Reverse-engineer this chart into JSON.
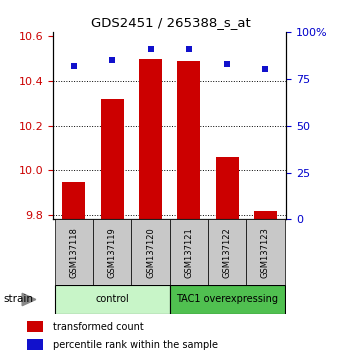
{
  "title": "GDS2451 / 265388_s_at",
  "samples": [
    "GSM137118",
    "GSM137119",
    "GSM137120",
    "GSM137121",
    "GSM137122",
    "GSM137123"
  ],
  "transformed_count": [
    9.95,
    10.32,
    10.5,
    10.49,
    10.06,
    9.82
  ],
  "percentile": [
    82,
    85,
    91,
    91,
    83,
    80
  ],
  "ylim_left": [
    9.78,
    10.62
  ],
  "ylim_right": [
    0,
    100
  ],
  "yticks_left": [
    9.8,
    10.0,
    10.2,
    10.4,
    10.6
  ],
  "yticks_right": [
    0,
    25,
    50,
    75,
    100
  ],
  "groups": [
    {
      "label": "control",
      "indices": [
        0,
        1,
        2
      ],
      "color": "#c8f5c8"
    },
    {
      "label": "TAC1 overexpressing",
      "indices": [
        3,
        4,
        5
      ],
      "color": "#50c050"
    }
  ],
  "bar_color": "#cc0000",
  "dot_color": "#1111cc",
  "bar_baseline": 9.78,
  "legend_red_label": "transformed count",
  "legend_blue_label": "percentile rank within the sample",
  "strain_label": "strain",
  "tick_area_color": "#c8c8c8",
  "ylabel_left_color": "#cc0000",
  "ylabel_right_color": "#0000cc",
  "bar_width": 0.6
}
